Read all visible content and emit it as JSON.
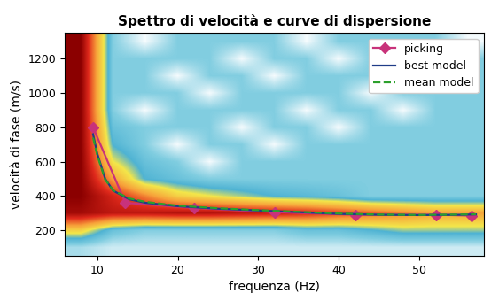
{
  "chart_data": {
    "type": "line",
    "title": "Spettro di velocità e curve di dispersione",
    "x_label": "frequenza (Hz)",
    "y_label": "velocità di fase (m/s)",
    "xlim": [
      6,
      58
    ],
    "ylim": [
      50,
      1350
    ],
    "xticks": [
      10,
      20,
      30,
      40,
      50
    ],
    "yticks": [
      200,
      400,
      600,
      800,
      1000,
      1200
    ],
    "grid": false,
    "legend": "upper right",
    "cells": {
      "x_edges": [
        6,
        10,
        14,
        18,
        22,
        26,
        30,
        34,
        38,
        42,
        46,
        50,
        54,
        58
      ],
      "y_edges": [
        50,
        150,
        250,
        350,
        450,
        550,
        650,
        750,
        850,
        950,
        1050,
        1150,
        1250,
        1350
      ],
      "values": [
        [
          0.25,
          0.2,
          0.2,
          0.2,
          0.2,
          0.2,
          0.2,
          0.2,
          0.2,
          0.2,
          0.2,
          0.2,
          0.2
        ],
        [
          0.55,
          0.35,
          0.3,
          0.3,
          0.3,
          0.3,
          0.3,
          0.35,
          0.35,
          0.4,
          0.45,
          0.45,
          0.45
        ],
        [
          0.95,
          0.9,
          0.9,
          0.92,
          0.92,
          0.9,
          0.88,
          0.85,
          0.8,
          0.75,
          0.7,
          0.65,
          0.65
        ],
        [
          1.0,
          0.85,
          0.7,
          0.55,
          0.5,
          0.45,
          0.4,
          0.38,
          0.35,
          0.3,
          0.3,
          0.3,
          0.3
        ],
        [
          1.0,
          0.65,
          0.4,
          0.35,
          0.3,
          0.3,
          0.3,
          0.3,
          0.3,
          0.3,
          0.3,
          0.3,
          0.3
        ],
        [
          1.0,
          0.5,
          0.35,
          0.3,
          0.15,
          0.3,
          0.3,
          0.3,
          0.3,
          0.3,
          0.3,
          0.3,
          0.3
        ],
        [
          1.0,
          0.4,
          0.3,
          0.15,
          0.3,
          0.3,
          0.15,
          0.3,
          0.3,
          0.3,
          0.3,
          0.3,
          0.3
        ],
        [
          1.0,
          0.35,
          0.3,
          0.3,
          0.3,
          0.15,
          0.3,
          0.3,
          0.15,
          0.3,
          0.3,
          0.3,
          0.3
        ],
        [
          1.0,
          0.3,
          0.15,
          0.3,
          0.3,
          0.3,
          0.3,
          0.15,
          0.3,
          0.3,
          0.15,
          0.3,
          0.3
        ],
        [
          1.0,
          0.3,
          0.3,
          0.3,
          0.15,
          0.3,
          0.3,
          0.3,
          0.3,
          0.15,
          0.3,
          0.3,
          0.3
        ],
        [
          1.0,
          0.3,
          0.3,
          0.15,
          0.3,
          0.3,
          0.15,
          0.3,
          0.3,
          0.3,
          0.3,
          0.15,
          0.3
        ],
        [
          1.0,
          0.3,
          0.3,
          0.3,
          0.3,
          0.15,
          0.3,
          0.3,
          0.15,
          0.3,
          0.3,
          0.3,
          0.3
        ],
        [
          1.0,
          0.3,
          0.15,
          0.3,
          0.3,
          0.3,
          0.3,
          0.15,
          0.3,
          0.3,
          0.3,
          0.3,
          0.15
        ]
      ]
    },
    "series": [
      {
        "name": "picking",
        "color": "#c8327a",
        "marker": "diamond",
        "line_style": "solid",
        "x": [
          9.5,
          13.5,
          22,
          32,
          42,
          52,
          56.5
        ],
        "values": [
          800,
          360,
          330,
          305,
          290,
          290,
          285
        ]
      },
      {
        "name": "best model",
        "color": "#1f3c88",
        "marker": "none",
        "line_style": "solid",
        "x": [
          9.5,
          10,
          11,
          12,
          14,
          16,
          20,
          25,
          30,
          35,
          40,
          45,
          50,
          55,
          57
        ],
        "values": [
          760,
          650,
          500,
          430,
          380,
          360,
          340,
          325,
          315,
          305,
          295,
          290,
          288,
          290,
          292
        ]
      },
      {
        "name": "mean model",
        "color": "#2ca02c",
        "marker": "none",
        "line_style": "dashed",
        "x": [
          9.5,
          10,
          11,
          12,
          14,
          16,
          20,
          25,
          30,
          35,
          40,
          45,
          50,
          55,
          57
        ],
        "values": [
          740,
          640,
          495,
          432,
          385,
          365,
          343,
          328,
          317,
          307,
          297,
          291,
          289,
          291,
          293
        ]
      }
    ]
  }
}
